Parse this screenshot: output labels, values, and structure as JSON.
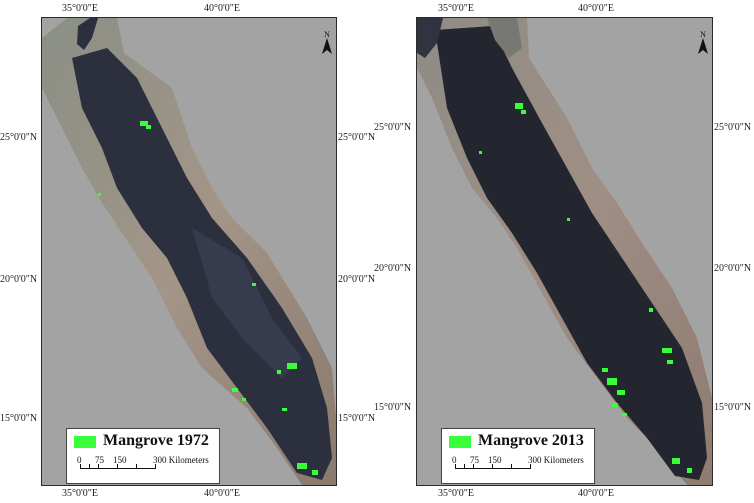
{
  "maps": [
    {
      "legend_label": "Mangrove 1972",
      "legend_color": "#39ff3a",
      "lon_top": [
        "35°0'0\"E",
        "40°0'0\"E"
      ],
      "lon_bottom": [
        "35°0'0\"E",
        "40°0'0\"E"
      ],
      "lat_left": [
        "25°0'0\"N",
        "20°0'0\"N",
        "15°0'0\"N"
      ],
      "lat_right": [
        "25°0'0\"N",
        "20°0'0\"N",
        "15°0'0\"N"
      ],
      "north_label": "N",
      "scale_labels": [
        "0",
        "75",
        "150",
        "300 Kilometers"
      ]
    },
    {
      "legend_label": "Mangrove 2013",
      "legend_color": "#39ff3a",
      "lon_top": [
        "35°0'0\"E",
        "40°0'0\"E"
      ],
      "lon_bottom": [
        "35°0'0\"E",
        "40°0'0\"E"
      ],
      "lat_left": [
        "25°0'0\"N",
        "20°0'0\"N",
        "15°0'0\"N"
      ],
      "lat_right": [
        "25°0'0\"N",
        "20°0'0\"N",
        "15°0'0\"N"
      ],
      "north_label": "N",
      "scale_labels": [
        "0",
        "75",
        "150",
        "300 Kilometers"
      ]
    }
  ]
}
